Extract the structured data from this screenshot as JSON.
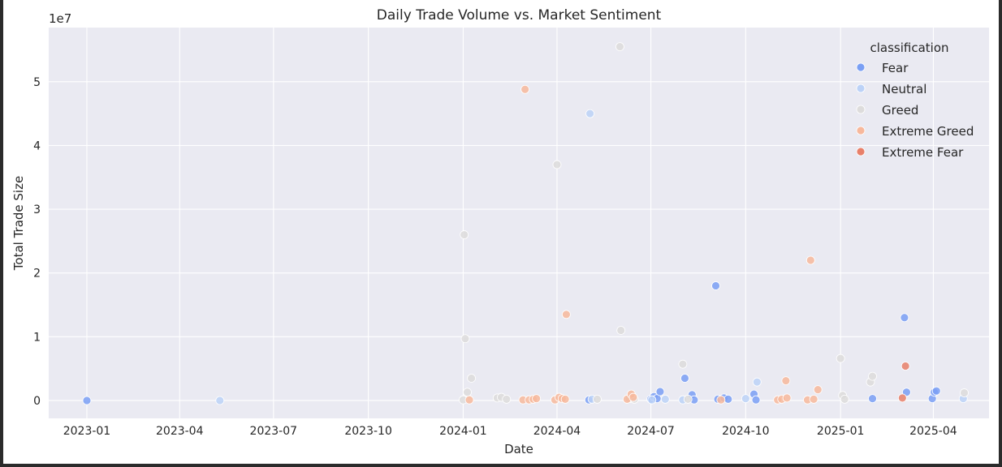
{
  "chart_data": {
    "type": "scatter",
    "title": "Daily Trade Volume vs. Market Sentiment",
    "xlabel": "Date",
    "ylabel": "Total Trade Size",
    "y_offset_label": "1e7",
    "x_ticks": [
      "2023-01",
      "2023-04",
      "2023-07",
      "2023-10",
      "2024-01",
      "2024-04",
      "2024-07",
      "2024-10",
      "2025-01",
      "2025-04"
    ],
    "x_range": [
      "2022-11-25",
      "2025-05-25"
    ],
    "y_ticks": [
      0,
      1,
      2,
      3,
      4,
      5
    ],
    "y_range": [
      -2800000,
      58500000
    ],
    "grid": true,
    "legend": {
      "title": "classification",
      "placement": "top-right",
      "entries": [
        "Fear",
        "Neutral",
        "Greed",
        "Extreme Greed",
        "Extreme Fear"
      ]
    },
    "series": [
      {
        "name": "Fear",
        "color": "#7a9ff4",
        "points": [
          {
            "x": "2023-01-01",
            "y": 0
          },
          {
            "x": "2024-05-02",
            "y": 100000
          },
          {
            "x": "2024-07-01",
            "y": 200000
          },
          {
            "x": "2024-07-04",
            "y": 600000
          },
          {
            "x": "2024-07-07",
            "y": 300000
          },
          {
            "x": "2024-07-10",
            "y": 1400000
          },
          {
            "x": "2024-08-03",
            "y": 3500000
          },
          {
            "x": "2024-08-10",
            "y": 900000
          },
          {
            "x": "2024-08-12",
            "y": 100000
          },
          {
            "x": "2024-09-02",
            "y": 18000000
          },
          {
            "x": "2024-09-04",
            "y": 200000
          },
          {
            "x": "2024-09-10",
            "y": 400000
          },
          {
            "x": "2024-09-14",
            "y": 200000
          },
          {
            "x": "2024-10-09",
            "y": 1000000
          },
          {
            "x": "2024-10-11",
            "y": 100000
          },
          {
            "x": "2025-02-01",
            "y": 300000
          },
          {
            "x": "2025-03-04",
            "y": 13000000
          },
          {
            "x": "2025-03-06",
            "y": 1300000
          },
          {
            "x": "2025-03-31",
            "y": 300000
          },
          {
            "x": "2025-04-02",
            "y": 1300000
          },
          {
            "x": "2025-04-04",
            "y": 1500000
          }
        ]
      },
      {
        "name": "Neutral",
        "color": "#bcd2f7",
        "points": [
          {
            "x": "2023-05-10",
            "y": 0
          },
          {
            "x": "2024-05-03",
            "y": 45000000
          },
          {
            "x": "2024-05-05",
            "y": 200000
          },
          {
            "x": "2024-07-02",
            "y": 100000
          },
          {
            "x": "2024-07-15",
            "y": 200000
          },
          {
            "x": "2024-08-01",
            "y": 100000
          },
          {
            "x": "2024-10-01",
            "y": 300000
          },
          {
            "x": "2024-10-12",
            "y": 2900000
          },
          {
            "x": "2025-04-30",
            "y": 300000
          }
        ]
      },
      {
        "name": "Greed",
        "color": "#dddcdc",
        "points": [
          {
            "x": "2024-01-01",
            "y": 100000
          },
          {
            "x": "2024-01-02",
            "y": 26000000
          },
          {
            "x": "2024-01-03",
            "y": 9700000
          },
          {
            "x": "2024-01-05",
            "y": 1300000
          },
          {
            "x": "2024-01-09",
            "y": 3500000
          },
          {
            "x": "2024-02-03",
            "y": 400000
          },
          {
            "x": "2024-02-07",
            "y": 500000
          },
          {
            "x": "2024-02-12",
            "y": 200000
          },
          {
            "x": "2024-04-01",
            "y": 37000000
          },
          {
            "x": "2024-05-10",
            "y": 200000
          },
          {
            "x": "2024-06-01",
            "y": 55500000
          },
          {
            "x": "2024-06-02",
            "y": 11000000
          },
          {
            "x": "2024-06-10",
            "y": 300000
          },
          {
            "x": "2024-06-15",
            "y": 200000
          },
          {
            "x": "2024-08-01",
            "y": 5700000
          },
          {
            "x": "2024-08-06",
            "y": 200000
          },
          {
            "x": "2025-01-01",
            "y": 6600000
          },
          {
            "x": "2025-01-03",
            "y": 800000
          },
          {
            "x": "2025-01-05",
            "y": 200000
          },
          {
            "x": "2025-01-30",
            "y": 2900000
          },
          {
            "x": "2025-02-01",
            "y": 3800000
          },
          {
            "x": "2025-05-01",
            "y": 1200000
          }
        ]
      },
      {
        "name": "Extreme Greed",
        "color": "#f7b89c",
        "points": [
          {
            "x": "2024-01-07",
            "y": 100000
          },
          {
            "x": "2024-02-28",
            "y": 100000
          },
          {
            "x": "2024-03-01",
            "y": 48800000
          },
          {
            "x": "2024-03-05",
            "y": 100000
          },
          {
            "x": "2024-03-09",
            "y": 200000
          },
          {
            "x": "2024-03-12",
            "y": 300000
          },
          {
            "x": "2024-03-30",
            "y": 100000
          },
          {
            "x": "2024-04-03",
            "y": 500000
          },
          {
            "x": "2024-04-06",
            "y": 300000
          },
          {
            "x": "2024-04-09",
            "y": 200000
          },
          {
            "x": "2024-04-10",
            "y": 13500000
          },
          {
            "x": "2024-06-08",
            "y": 200000
          },
          {
            "x": "2024-06-12",
            "y": 1000000
          },
          {
            "x": "2024-06-14",
            "y": 500000
          },
          {
            "x": "2024-09-07",
            "y": 100000
          },
          {
            "x": "2024-11-01",
            "y": 100000
          },
          {
            "x": "2024-11-05",
            "y": 200000
          },
          {
            "x": "2024-11-09",
            "y": 3100000
          },
          {
            "x": "2024-11-10",
            "y": 400000
          },
          {
            "x": "2024-11-30",
            "y": 100000
          },
          {
            "x": "2024-12-03",
            "y": 22000000
          },
          {
            "x": "2024-12-06",
            "y": 200000
          },
          {
            "x": "2024-12-10",
            "y": 1700000
          }
        ]
      },
      {
        "name": "Extreme Fear",
        "color": "#e8806a",
        "points": [
          {
            "x": "2025-03-02",
            "y": 400000
          },
          {
            "x": "2025-03-05",
            "y": 5400000
          }
        ]
      }
    ]
  }
}
